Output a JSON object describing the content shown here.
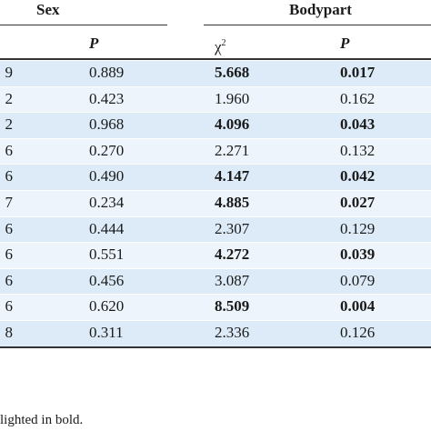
{
  "header": {
    "sex_label": "Sex",
    "bodypart_label": "Bodypart",
    "p_label_sex": "P",
    "chi_label": "χ",
    "chi_sup": "2",
    "p_label_bodypart": "P"
  },
  "rows": [
    {
      "prev": "9",
      "sex_p": "0.889",
      "chi2": "5.668",
      "bp_p": "0.017",
      "bold": true
    },
    {
      "prev": "2",
      "sex_p": "0.423",
      "chi2": "1.960",
      "bp_p": "0.162",
      "bold": false
    },
    {
      "prev": "2",
      "sex_p": "0.968",
      "chi2": "4.096",
      "bp_p": "0.043",
      "bold": true
    },
    {
      "prev": "6",
      "sex_p": "0.270",
      "chi2": "2.271",
      "bp_p": "0.132",
      "bold": false
    },
    {
      "prev": "6",
      "sex_p": "0.490",
      "chi2": "4.147",
      "bp_p": "0.042",
      "bold": true
    },
    {
      "prev": "7",
      "sex_p": "0.234",
      "chi2": "4.885",
      "bp_p": "0.027",
      "bold": true
    },
    {
      "prev": "6",
      "sex_p": "0.444",
      "chi2": "2.307",
      "bp_p": "0.129",
      "bold": false
    },
    {
      "prev": "6",
      "sex_p": "0.551",
      "chi2": "4.272",
      "bp_p": "0.039",
      "bold": true
    },
    {
      "prev": "6",
      "sex_p": "0.456",
      "chi2": "3.087",
      "bp_p": "0.079",
      "bold": false
    },
    {
      "prev": "6",
      "sex_p": "0.620",
      "chi2": "8.509",
      "bp_p": "0.004",
      "bold": true
    },
    {
      "prev": "8",
      "sex_p": "0.311",
      "chi2": "2.336",
      "bp_p": "0.126",
      "bold": false
    }
  ],
  "footnote": "lighted in bold."
}
